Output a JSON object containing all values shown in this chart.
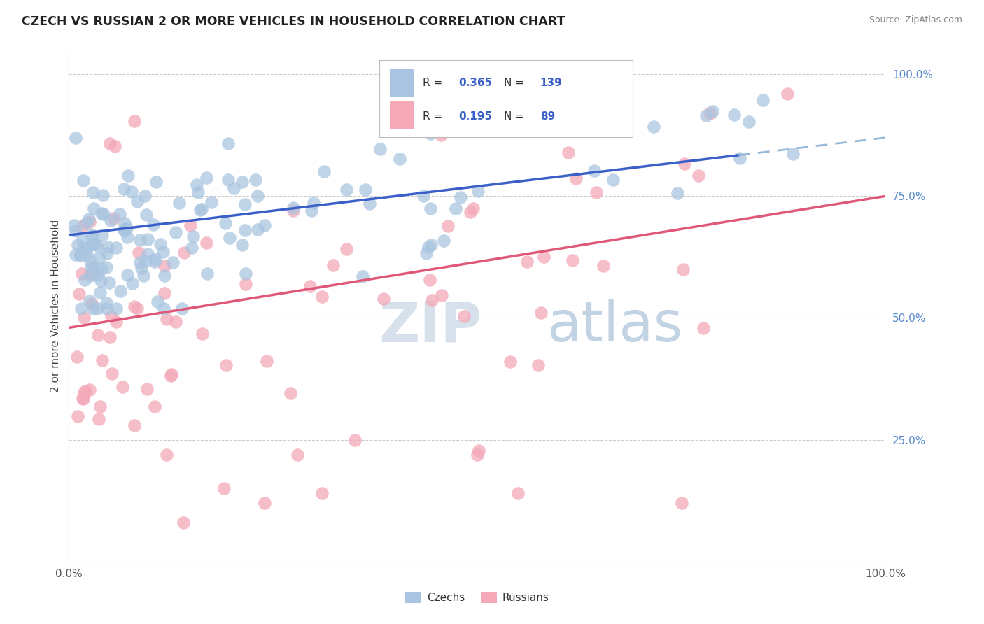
{
  "title": "CZECH VS RUSSIAN 2 OR MORE VEHICLES IN HOUSEHOLD CORRELATION CHART",
  "source": "Source: ZipAtlas.com",
  "ylabel": "2 or more Vehicles in Household",
  "legend_R_czech": "0.365",
  "legend_N_czech": "139",
  "legend_R_russian": "0.195",
  "legend_N_russian": "89",
  "czech_color": "#a8c4e0",
  "russian_color": "#f4a8b8",
  "czech_line_color": "#3a5fc8",
  "russian_line_color": "#e05878",
  "trendline_ext_color": "#96b8d8",
  "background_color": "#ffffff",
  "watermark_zip": "ZIP",
  "watermark_atlas": "atlas",
  "watermark_color_zip": "#d0dce8",
  "watermark_color_atlas": "#b8cce0",
  "grid_color": "#cccccc",
  "tick_color": "#5588cc",
  "title_color": "#222222",
  "source_color": "#888888",
  "legend_text_color": "#333333",
  "legend_value_color": "#3a5fc8"
}
